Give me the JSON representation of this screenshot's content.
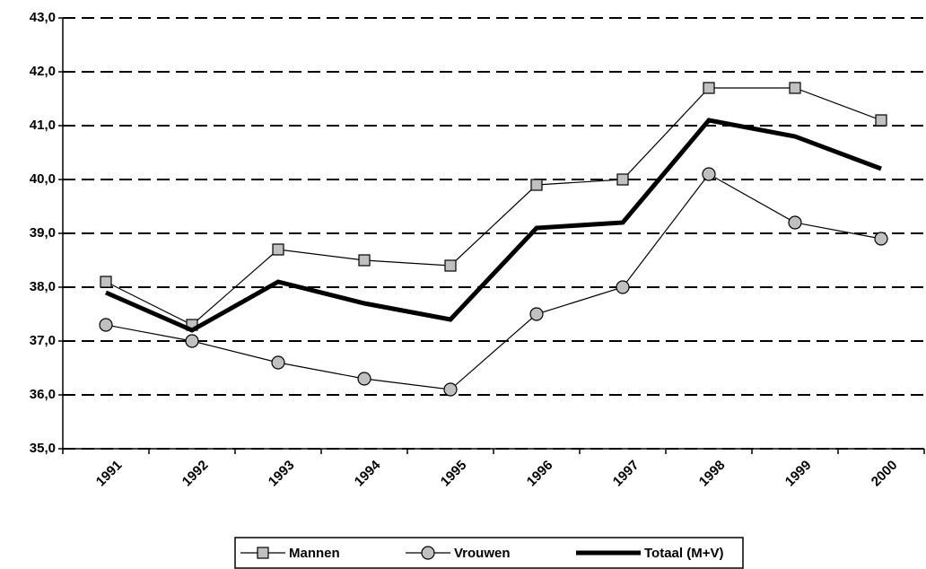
{
  "chart_data": {
    "type": "line",
    "categories": [
      "1991",
      "1992",
      "1993",
      "1994",
      "1995",
      "1996",
      "1997",
      "1998",
      "1999",
      "2000"
    ],
    "series": [
      {
        "name": "Mannen",
        "color": "#000000",
        "marker": "square",
        "marker_color": "#c0c0c0",
        "values": [
          38.1,
          37.3,
          38.7,
          38.5,
          38.4,
          39.9,
          40.0,
          41.7,
          41.7,
          41.1
        ]
      },
      {
        "name": "Vrouwen",
        "color": "#000000",
        "marker": "circle",
        "marker_color": "#c0c0c0",
        "values": [
          37.3,
          37.0,
          36.6,
          36.3,
          36.1,
          37.5,
          38.0,
          40.1,
          39.2,
          38.9
        ]
      },
      {
        "name": "Totaal (M+V)",
        "color": "#000000",
        "marker": "none",
        "values": [
          37.9,
          37.2,
          38.1,
          37.7,
          37.4,
          39.1,
          39.2,
          41.1,
          40.8,
          40.2
        ]
      }
    ],
    "ylim": [
      35,
      43
    ],
    "yticks": [
      {
        "value": 35,
        "label": "35,0"
      },
      {
        "value": 36,
        "label": "36,0"
      },
      {
        "value": 37,
        "label": "37,0"
      },
      {
        "value": 38,
        "label": "38,0"
      },
      {
        "value": 39,
        "label": "39,0"
      },
      {
        "value": 40,
        "label": "40,0"
      },
      {
        "value": 41,
        "label": "41,0"
      },
      {
        "value": 42,
        "label": "42,0"
      },
      {
        "value": 43,
        "label": "43,0"
      }
    ],
    "grid": true,
    "legend": "bottom"
  }
}
